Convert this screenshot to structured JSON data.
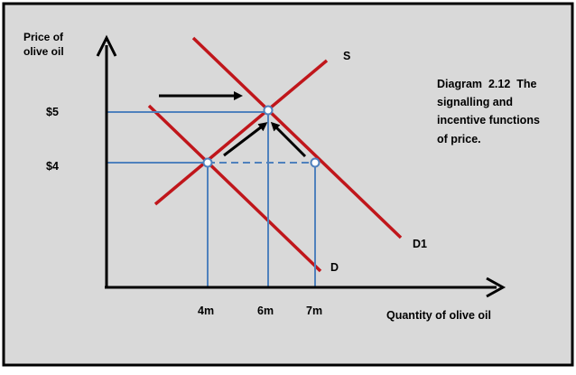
{
  "colors": {
    "background": "#d9d9d9",
    "border": "#000000",
    "curve": "#c0161b",
    "guide": "#4f81bd",
    "axis": "#000000",
    "arrow": "#000000",
    "point_fill": "#ffffff"
  },
  "labels": {
    "y_axis": [
      "Price of",
      "olive oil"
    ],
    "x_axis": "Quantity of olive oil",
    "caption": [
      "Diagram  2.12  The",
      "signalling and",
      "incentive functions",
      "of price."
    ],
    "supply": "S",
    "demand_original": "D",
    "demand_new": "D1"
  },
  "chart_data": {
    "type": "diagram",
    "curves": [
      {
        "name": "S",
        "kind": "supply"
      },
      {
        "name": "D",
        "kind": "demand"
      },
      {
        "name": "D1",
        "kind": "demand"
      }
    ],
    "price_ticks": [
      {
        "label": "$5",
        "value": 5
      },
      {
        "label": "$4",
        "value": 4
      }
    ],
    "quantity_ticks": [
      {
        "label": "4m",
        "value": 4
      },
      {
        "label": "6m",
        "value": 6
      },
      {
        "label": "7m",
        "value": 7
      }
    ],
    "points": [
      {
        "price": 4,
        "quantity": 4
      },
      {
        "price": 5,
        "quantity": 6
      },
      {
        "price": 4,
        "quantity": 7
      }
    ]
  }
}
